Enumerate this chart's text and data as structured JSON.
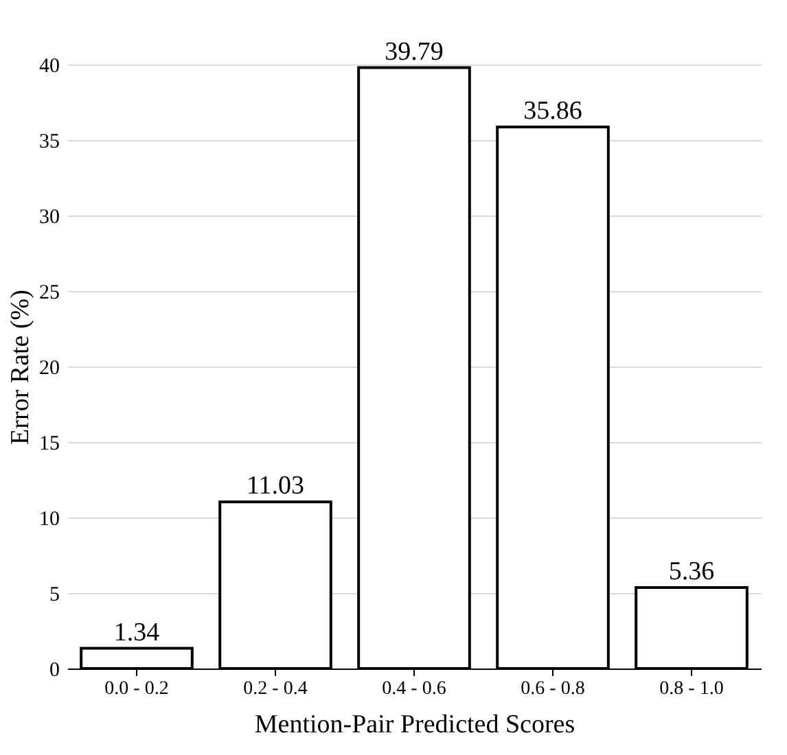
{
  "chart_data": {
    "type": "bar",
    "xlabel": "Mention-Pair Predicted Scores",
    "ylabel": "Error Rate (%)",
    "categories": [
      "0.0 - 0.2",
      "0.2 - 0.4",
      "0.4 - 0.6",
      "0.6 - 0.8",
      "0.8 - 1.0"
    ],
    "values": [
      1.34,
      11.03,
      39.79,
      35.86,
      5.36
    ],
    "color": "#ffffff",
    "ylim": [
      0,
      40
    ],
    "yticks": [
      0,
      5,
      10,
      15,
      20,
      25,
      30,
      35,
      40
    ],
    "grid": "y",
    "data_labels": true
  }
}
